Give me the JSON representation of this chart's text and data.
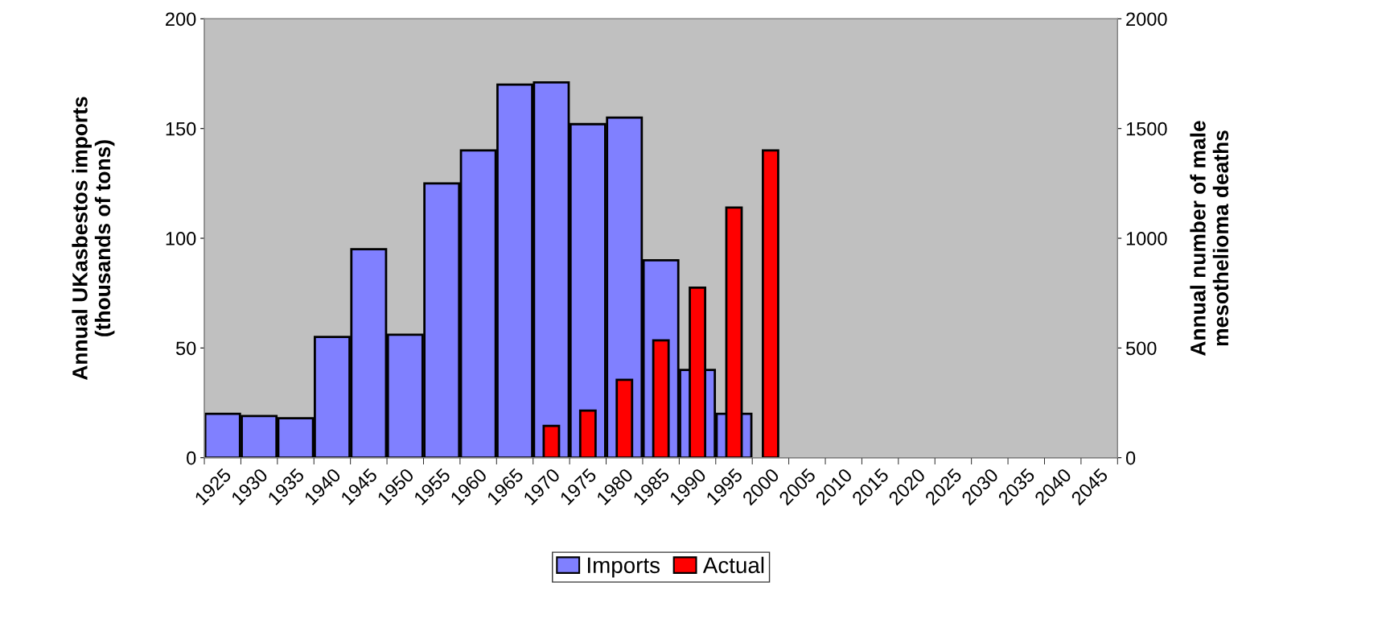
{
  "chart_data": {
    "type": "bar",
    "ylabel": "Annual UKasbestos imports\n(thousands of tons)",
    "y2label": "Annual number of male\nmesothelioma deaths",
    "categories": [
      "1925",
      "1930",
      "1935",
      "1940",
      "1945",
      "1950",
      "1955",
      "1960",
      "1965",
      "1970",
      "1975",
      "1980",
      "1985",
      "1990",
      "1995",
      "2000",
      "2005",
      "2010",
      "2015",
      "2020",
      "2025",
      "2030",
      "2035",
      "2040",
      "2045"
    ],
    "series": [
      {
        "name": "Imports",
        "color": "#8080ff",
        "values": [
          20,
          19,
          18,
          55,
          95,
          56,
          125,
          140,
          170,
          171,
          152,
          155,
          90,
          40,
          20,
          null,
          null,
          null,
          null,
          null,
          null,
          null,
          null,
          null,
          null
        ]
      },
      {
        "name": "Actual",
        "color": "#ff0000",
        "axis": "y2",
        "values": [
          null,
          null,
          null,
          null,
          null,
          null,
          null,
          null,
          null,
          145,
          215,
          355,
          535,
          775,
          1140,
          1400,
          null,
          null,
          null,
          null,
          null,
          null,
          null,
          null,
          null
        ]
      }
    ],
    "ylim": [
      0,
      200
    ],
    "yticks": [
      0,
      50,
      100,
      150,
      200
    ],
    "y2lim": [
      0,
      2000
    ],
    "y2ticks": [
      0,
      500,
      1000,
      1500,
      2000
    ],
    "grid": false,
    "legend": "bottom"
  }
}
